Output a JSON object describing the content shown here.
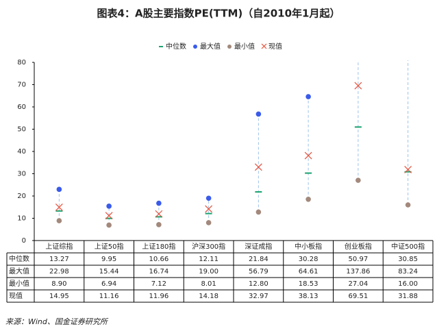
{
  "chart_data": {
    "type": "range",
    "title": "图表4：A股主要指数PE(TTM)（自2010年1月起）",
    "categories": [
      "上证综指",
      "上证50指",
      "上证180指",
      "沪深300指",
      "深证成指",
      "中小板指",
      "创业板指",
      "中证500指"
    ],
    "series": [
      {
        "name": "中位数",
        "color": "#1aa36f",
        "marker": "dash",
        "values": [
          13.27,
          9.95,
          10.66,
          12.11,
          21.84,
          30.28,
          50.97,
          30.85
        ],
        "value_labels": [
          "13.27",
          "9.95",
          "10.66",
          "12.11",
          "21.84",
          "30.28",
          "50.97",
          "30.85"
        ]
      },
      {
        "name": "最大值",
        "color": "#3a5bea",
        "marker": "dot",
        "values": [
          22.98,
          15.44,
          16.74,
          19.0,
          56.79,
          64.61,
          137.86,
          83.24
        ],
        "value_labels": [
          "22.98",
          "15.44",
          "16.74",
          "19.00",
          "56.79",
          "64.61",
          "137.86",
          "83.24"
        ]
      },
      {
        "name": "最小值",
        "color": "#a3897c",
        "marker": "dot",
        "values": [
          8.9,
          6.94,
          7.12,
          8.01,
          12.8,
          18.53,
          27.04,
          16.0
        ],
        "value_labels": [
          "8.90",
          "6.94",
          "7.12",
          "8.01",
          "12.80",
          "18.53",
          "27.04",
          "16.00"
        ]
      },
      {
        "name": "现值",
        "color": "#e8503a",
        "marker": "cross",
        "values": [
          14.95,
          11.16,
          11.96,
          14.18,
          32.97,
          38.13,
          69.51,
          31.88
        ],
        "value_labels": [
          "14.95",
          "11.16",
          "11.96",
          "14.18",
          "32.97",
          "38.13",
          "69.51",
          "31.88"
        ]
      }
    ],
    "range_color": "#9cc3ea",
    "ylim": [
      0,
      80
    ],
    "yticks": [
      0,
      10,
      20,
      30,
      40,
      50,
      60,
      70,
      80
    ],
    "grid": false,
    "legend": "top",
    "source": "来源：Wind、国金证券研究所"
  }
}
